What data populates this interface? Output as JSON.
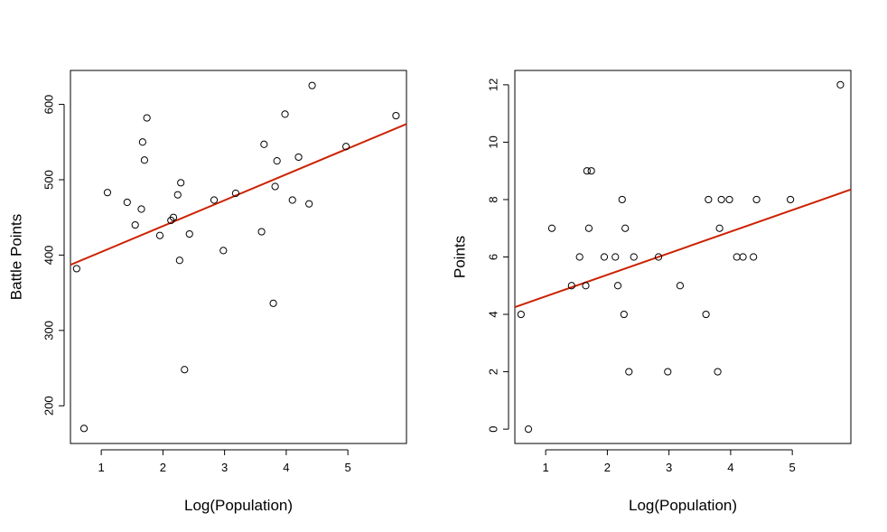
{
  "chart_data": [
    {
      "type": "scatter",
      "xlabel": "Log(Population)",
      "ylabel": "Battle Points",
      "xlim": [
        0.5,
        5.95
      ],
      "ylim": [
        150,
        645
      ],
      "xticks": [
        1,
        2,
        3,
        4,
        5
      ],
      "yticks": [
        200,
        300,
        400,
        500,
        600
      ],
      "points": [
        {
          "x": 0.6,
          "y": 382
        },
        {
          "x": 0.72,
          "y": 170
        },
        {
          "x": 1.1,
          "y": 483
        },
        {
          "x": 1.42,
          "y": 470
        },
        {
          "x": 1.55,
          "y": 440
        },
        {
          "x": 1.65,
          "y": 461
        },
        {
          "x": 1.67,
          "y": 550
        },
        {
          "x": 1.7,
          "y": 526
        },
        {
          "x": 1.74,
          "y": 582
        },
        {
          "x": 1.95,
          "y": 426
        },
        {
          "x": 2.13,
          "y": 446
        },
        {
          "x": 2.17,
          "y": 450
        },
        {
          "x": 2.24,
          "y": 480
        },
        {
          "x": 2.27,
          "y": 393
        },
        {
          "x": 2.29,
          "y": 496
        },
        {
          "x": 2.35,
          "y": 248
        },
        {
          "x": 2.43,
          "y": 428
        },
        {
          "x": 2.83,
          "y": 473
        },
        {
          "x": 2.98,
          "y": 406
        },
        {
          "x": 3.18,
          "y": 482
        },
        {
          "x": 3.6,
          "y": 431
        },
        {
          "x": 3.64,
          "y": 547
        },
        {
          "x": 3.79,
          "y": 336
        },
        {
          "x": 3.82,
          "y": 491
        },
        {
          "x": 3.85,
          "y": 525
        },
        {
          "x": 3.98,
          "y": 587
        },
        {
          "x": 4.1,
          "y": 473
        },
        {
          "x": 4.2,
          "y": 530
        },
        {
          "x": 4.37,
          "y": 468
        },
        {
          "x": 4.42,
          "y": 625
        },
        {
          "x": 4.97,
          "y": 544
        },
        {
          "x": 5.78,
          "y": 585
        }
      ],
      "fit_line": {
        "color": "#cc2200",
        "x": [
          0.5,
          5.95
        ],
        "y": [
          387,
          574
        ]
      }
    },
    {
      "type": "scatter",
      "xlabel": "Log(Population)",
      "ylabel": "Points",
      "xlim": [
        0.5,
        5.95
      ],
      "ylim": [
        -0.5,
        12.5
      ],
      "xticks": [
        1,
        2,
        3,
        4,
        5
      ],
      "yticks": [
        0,
        2,
        4,
        6,
        8,
        10,
        12
      ],
      "points": [
        {
          "x": 0.6,
          "y": 4
        },
        {
          "x": 0.72,
          "y": 0
        },
        {
          "x": 1.1,
          "y": 7
        },
        {
          "x": 1.42,
          "y": 5
        },
        {
          "x": 1.55,
          "y": 6
        },
        {
          "x": 1.65,
          "y": 5
        },
        {
          "x": 1.67,
          "y": 9
        },
        {
          "x": 1.7,
          "y": 7
        },
        {
          "x": 1.74,
          "y": 9
        },
        {
          "x": 1.95,
          "y": 6
        },
        {
          "x": 2.13,
          "y": 6
        },
        {
          "x": 2.17,
          "y": 5
        },
        {
          "x": 2.24,
          "y": 8
        },
        {
          "x": 2.27,
          "y": 4
        },
        {
          "x": 2.29,
          "y": 7
        },
        {
          "x": 2.35,
          "y": 2
        },
        {
          "x": 2.43,
          "y": 6
        },
        {
          "x": 2.83,
          "y": 6
        },
        {
          "x": 2.98,
          "y": 2
        },
        {
          "x": 3.18,
          "y": 5
        },
        {
          "x": 3.6,
          "y": 4
        },
        {
          "x": 3.64,
          "y": 8
        },
        {
          "x": 3.79,
          "y": 2
        },
        {
          "x": 3.82,
          "y": 7
        },
        {
          "x": 3.85,
          "y": 8
        },
        {
          "x": 3.98,
          "y": 8
        },
        {
          "x": 4.1,
          "y": 6
        },
        {
          "x": 4.2,
          "y": 6
        },
        {
          "x": 4.37,
          "y": 6
        },
        {
          "x": 4.42,
          "y": 8
        },
        {
          "x": 4.97,
          "y": 8
        },
        {
          "x": 5.78,
          "y": 12
        }
      ],
      "fit_line": {
        "color": "#cc2200",
        "x": [
          0.5,
          5.95
        ],
        "y": [
          4.25,
          8.35
        ]
      }
    }
  ]
}
